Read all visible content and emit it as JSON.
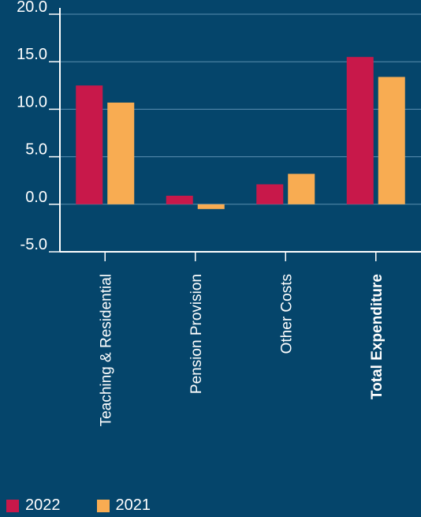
{
  "chart_data": {
    "type": "bar",
    "categories": [
      "Teaching & Residential",
      "Pension Provision",
      "Other Costs",
      "Total Expenditure"
    ],
    "emphasized_category": "Total Expenditure",
    "series": [
      {
        "name": "2022",
        "color": "#c8184a",
        "values": [
          12.5,
          0.9,
          2.1,
          15.5
        ]
      },
      {
        "name": "2021",
        "color": "#f8ac52",
        "values": [
          10.7,
          -0.5,
          3.2,
          13.4
        ]
      }
    ],
    "yticks": [
      "20.0",
      "15.0",
      "10.0",
      "5.0",
      "0.0",
      "-5.0"
    ],
    "ylim": [
      -5,
      20
    ],
    "grid": true,
    "legend_position": "bottom-left",
    "title": "",
    "xlabel": "",
    "ylabel": ""
  },
  "colors": {
    "background": "#05456b",
    "axis": "#ffffff",
    "gridline": "#5b8fb0"
  }
}
